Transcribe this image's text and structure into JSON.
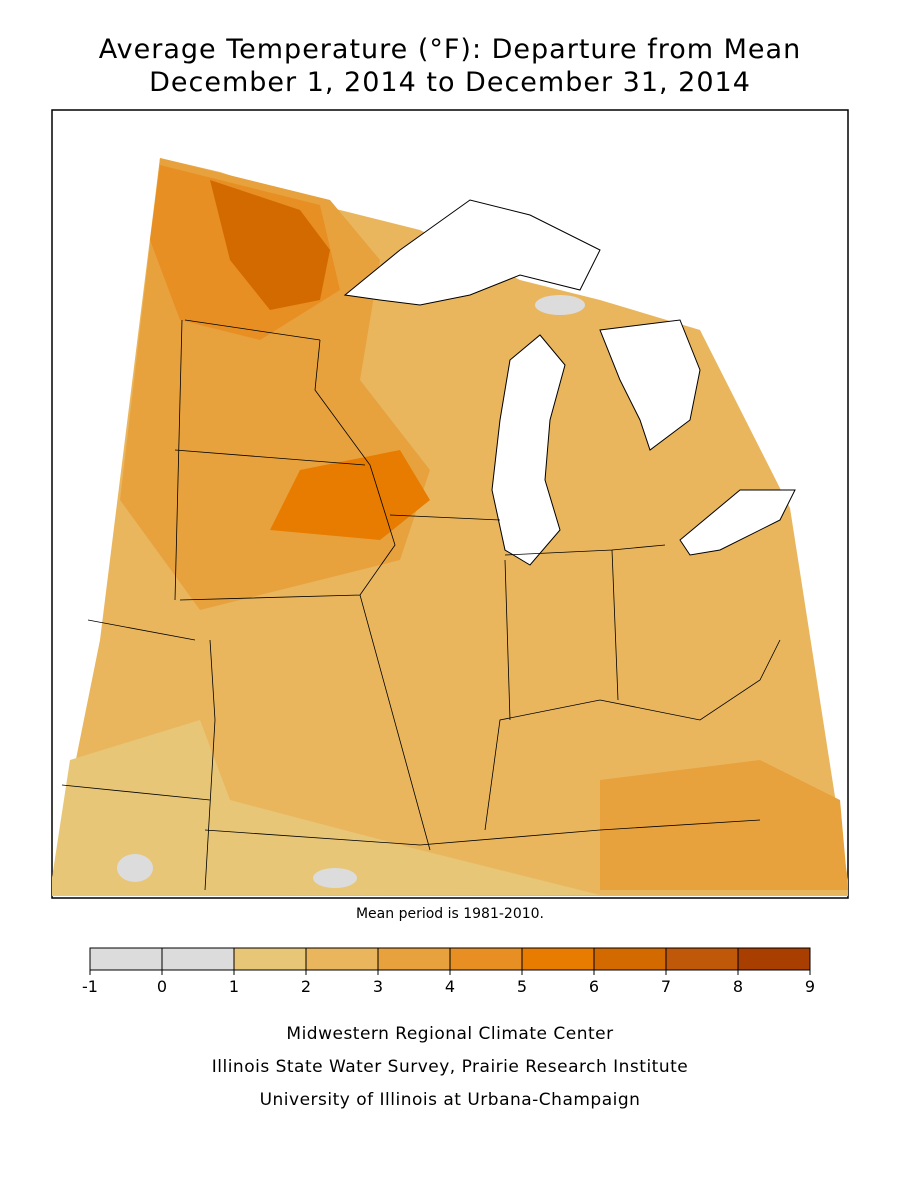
{
  "title": [
    "Average Temperature (°F): Departure from Mean",
    "December 1, 2014 to December 31, 2014"
  ],
  "note": "Mean period is 1981-2010.",
  "legend": {
    "ticks": [
      -1,
      0,
      1,
      2,
      3,
      4,
      5,
      6,
      7,
      8,
      9
    ],
    "colors": [
      "#dcdcdc",
      "#dcdcdc",
      "#e8c678",
      "#e9b65e",
      "#e7a23e",
      "#e88f24",
      "#e87c00",
      "#d36a00",
      "#c0580a",
      "#a83e00"
    ]
  },
  "credits": [
    "Midwestern Regional Climate Center",
    "Illinois State Water Survey, Prairie Research Institute",
    "University of Illinois at Urbana-Champaign"
  ]
}
